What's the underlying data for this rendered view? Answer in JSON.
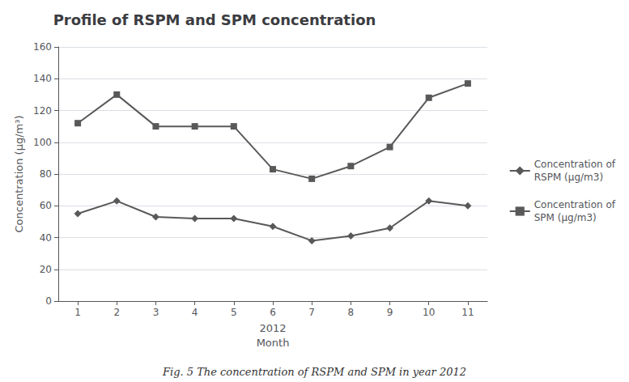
{
  "chart_data": {
    "type": "line",
    "title": "Profile of RSPM and SPM concentration",
    "xlabel": "2012\nMonth",
    "ylabel": "Concentration (µg/m³)",
    "x": [
      1,
      2,
      3,
      4,
      5,
      6,
      7,
      8,
      9,
      10,
      11
    ],
    "series": [
      {
        "name": "Concentration of\nRSPM (µg/m3)",
        "color": "#595959",
        "marker": "diamond",
        "values": [
          55,
          63,
          53,
          52,
          52,
          47,
          38,
          41,
          46,
          63,
          60
        ]
      },
      {
        "name": "Concentration of\nSPM (µg/m3)",
        "color": "#595959",
        "marker": "square",
        "values": [
          112,
          130,
          110,
          110,
          110,
          83,
          77,
          85,
          97,
          128,
          137
        ]
      }
    ],
    "xlim": [
      0.5,
      11.5
    ],
    "xticks": [
      1,
      2,
      3,
      4,
      5,
      6,
      7,
      8,
      9,
      10,
      11
    ],
    "ylim": [
      0,
      160
    ],
    "yticks": [
      0,
      20,
      40,
      60,
      80,
      100,
      120,
      140,
      160
    ],
    "grid": true,
    "legend": "right",
    "annotations": [
      "Fig. 5 The concentration of RSPM and SPM in year 2012"
    ]
  }
}
